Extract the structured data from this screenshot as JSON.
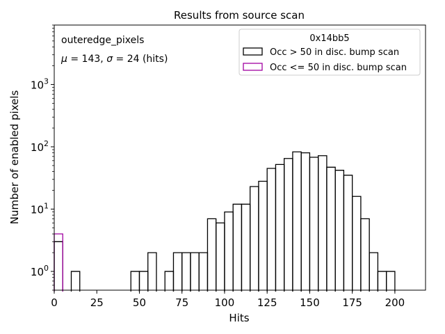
{
  "chart_data": {
    "type": "histogram",
    "title": "Results from source scan",
    "xlabel": "Hits",
    "ylabel": "Number of enabled pixels",
    "y_scale": "log",
    "xlim": [
      0,
      218
    ],
    "ylim": [
      0.5,
      9000
    ],
    "x_ticks": [
      0,
      25,
      50,
      75,
      100,
      125,
      150,
      175,
      200
    ],
    "x_tick_labels": [
      "0",
      "25",
      "50",
      "75",
      "100",
      "125",
      "150",
      "175",
      "200"
    ],
    "y_ticks": [
      1,
      10,
      100,
      1000
    ],
    "y_tick_labels": [
      {
        "base": "10",
        "exp": "0"
      },
      {
        "base": "10",
        "exp": "1"
      },
      {
        "base": "10",
        "exp": "2"
      },
      {
        "base": "10",
        "exp": "3"
      }
    ],
    "grid": false,
    "annotations": {
      "line1": "outeredge_pixels",
      "line2_mu": "μ",
      "line2_eq1": " = 143, ",
      "line2_sigma": "σ",
      "line2_eq2": " = 24 (hits)"
    },
    "legend": {
      "placement": "top-right",
      "title": "0x14bb5",
      "entries": [
        "Occ > 50 in disc. bump scan",
        "Occ <= 50 in disc. bump scan"
      ]
    },
    "series": [
      {
        "name": "Occ > 50 in disc. bump scan",
        "color": "#000000",
        "bin_width": 5,
        "bins": [
          [
            0,
            3
          ],
          [
            10,
            1
          ],
          [
            45,
            1
          ],
          [
            50,
            1
          ],
          [
            55,
            2
          ],
          [
            65,
            1
          ],
          [
            70,
            2
          ],
          [
            75,
            2
          ],
          [
            80,
            2
          ],
          [
            85,
            2
          ],
          [
            90,
            7
          ],
          [
            95,
            6
          ],
          [
            100,
            9
          ],
          [
            105,
            12
          ],
          [
            110,
            12
          ],
          [
            115,
            23
          ],
          [
            120,
            28
          ],
          [
            125,
            45
          ],
          [
            130,
            52
          ],
          [
            135,
            65
          ],
          [
            140,
            83
          ],
          [
            145,
            80
          ],
          [
            150,
            68
          ],
          [
            155,
            72
          ],
          [
            160,
            47
          ],
          [
            165,
            42
          ],
          [
            170,
            35
          ],
          [
            175,
            16
          ],
          [
            180,
            7
          ],
          [
            185,
            2
          ],
          [
            190,
            1
          ],
          [
            195,
            1
          ]
        ]
      },
      {
        "name": "Occ <= 50 in disc. bump scan",
        "color": "#a000a0",
        "bin_width": 5,
        "bins": [
          [
            0,
            4
          ]
        ]
      }
    ]
  }
}
